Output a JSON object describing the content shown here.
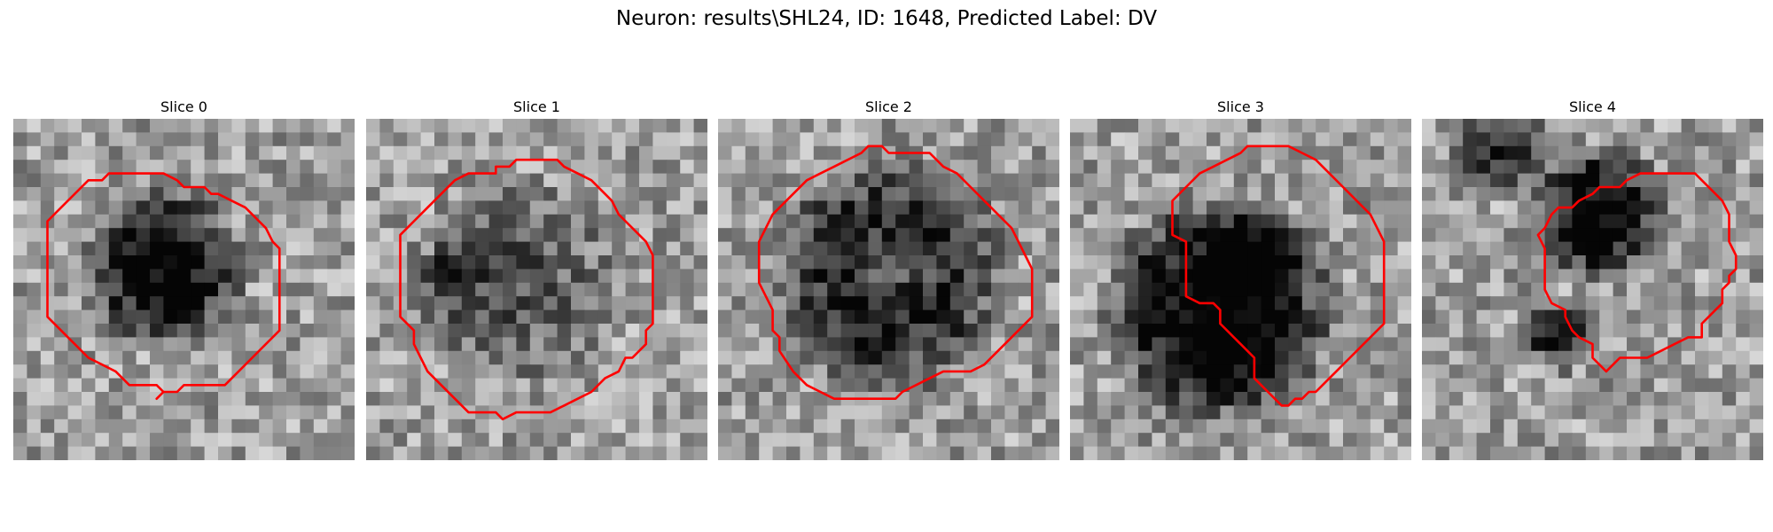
{
  "figure": {
    "title": "Neuron: results\\SHL24, ID: 1648, Predicted Label: DV"
  },
  "contour_color": "#ff0000",
  "grid_size": 25,
  "panels": [
    {
      "title": "Slice 0",
      "contour": [
        [
          4.5,
          5.5
        ],
        [
          5.5,
          4.5
        ],
        [
          6.5,
          4.5
        ],
        [
          7,
          4
        ],
        [
          9,
          4
        ],
        [
          11,
          4
        ],
        [
          12,
          4.5
        ],
        [
          12.5,
          5
        ],
        [
          14,
          5
        ],
        [
          14.5,
          5.5
        ],
        [
          15,
          5.5
        ],
        [
          16,
          6
        ],
        [
          17,
          6.5
        ],
        [
          18,
          7.5
        ],
        [
          18.5,
          8
        ],
        [
          19,
          9
        ],
        [
          19.5,
          9.5
        ],
        [
          19.5,
          10.5
        ],
        [
          19.5,
          12
        ],
        [
          19.5,
          15.5
        ],
        [
          18.5,
          16.5
        ],
        [
          17.5,
          17.5
        ],
        [
          16.5,
          18.5
        ],
        [
          15.5,
          19.5
        ],
        [
          13.5,
          19.5
        ],
        [
          12.5,
          19.5
        ],
        [
          12,
          20
        ],
        [
          11.5,
          20
        ],
        [
          11,
          20
        ],
        [
          10.5,
          20.5
        ],
        [
          11,
          20
        ],
        [
          10.5,
          19.5
        ],
        [
          9.5,
          19.5
        ],
        [
          8.5,
          19.5
        ],
        [
          7.5,
          18.5
        ],
        [
          6.5,
          18
        ],
        [
          5.5,
          17.5
        ],
        [
          4.5,
          16.5
        ],
        [
          3.5,
          15.5
        ],
        [
          2.5,
          14.5
        ],
        [
          2.5,
          11.5
        ],
        [
          2.5,
          10.5
        ],
        [
          2.5,
          9.5
        ],
        [
          2.5,
          8.5
        ],
        [
          2.5,
          7.5
        ],
        [
          3.5,
          6.5
        ]
      ]
    },
    {
      "title": "Slice 1",
      "contour": [
        [
          2.5,
          8.5
        ],
        [
          3.5,
          7.5
        ],
        [
          4.5,
          6.5
        ],
        [
          5.5,
          5.5
        ],
        [
          6.5,
          4.5
        ],
        [
          7.5,
          4
        ],
        [
          9.5,
          4
        ],
        [
          9.5,
          3.5
        ],
        [
          10.5,
          3.5
        ],
        [
          11,
          3
        ],
        [
          13,
          3
        ],
        [
          14,
          3
        ],
        [
          14.5,
          3.5
        ],
        [
          15.5,
          4
        ],
        [
          16.5,
          4.5
        ],
        [
          17.5,
          5.5
        ],
        [
          18,
          6
        ],
        [
          18.5,
          7
        ],
        [
          19,
          7.5
        ],
        [
          19.5,
          8
        ],
        [
          20.5,
          9
        ],
        [
          21,
          10
        ],
        [
          21,
          11
        ],
        [
          21,
          12
        ],
        [
          21,
          13
        ],
        [
          21,
          14
        ],
        [
          21,
          15
        ],
        [
          20.5,
          15.5
        ],
        [
          20.5,
          16.5
        ],
        [
          19.5,
          17.5
        ],
        [
          19,
          17.5
        ],
        [
          18.5,
          18.5
        ],
        [
          17.5,
          19
        ],
        [
          16.5,
          20
        ],
        [
          15.5,
          20.5
        ],
        [
          14.5,
          21
        ],
        [
          13.5,
          21.5
        ],
        [
          12.5,
          21.5
        ],
        [
          11.5,
          21.5
        ],
        [
          11,
          21.5
        ],
        [
          10,
          22
        ],
        [
          9.5,
          21.5
        ],
        [
          8.5,
          21.5
        ],
        [
          7.5,
          21.5
        ],
        [
          6.5,
          20.5
        ],
        [
          5.5,
          19.5
        ],
        [
          4.5,
          18.5
        ],
        [
          4,
          17.5
        ],
        [
          3.5,
          16.5
        ],
        [
          3.5,
          15.5
        ],
        [
          2.5,
          14.5
        ],
        [
          2.5,
          13.5
        ],
        [
          2.5,
          12.5
        ],
        [
          2.5,
          11.5
        ],
        [
          2.5,
          9.5
        ]
      ]
    },
    {
      "title": "Slice 2",
      "contour": [
        [
          4,
          7
        ],
        [
          4.5,
          6.5
        ],
        [
          5.5,
          5.5
        ],
        [
          6.5,
          4.5
        ],
        [
          7.5,
          4
        ],
        [
          8.5,
          3.5
        ],
        [
          9.5,
          3
        ],
        [
          10.5,
          2.5
        ],
        [
          11,
          2
        ],
        [
          12,
          2
        ],
        [
          12.5,
          2.5
        ],
        [
          13.5,
          2.5
        ],
        [
          15.5,
          2.5
        ],
        [
          16.5,
          3.5
        ],
        [
          17.5,
          4
        ],
        [
          18.5,
          5
        ],
        [
          19.5,
          6
        ],
        [
          20,
          6.5
        ],
        [
          20.5,
          7
        ],
        [
          21.5,
          8
        ],
        [
          22,
          9
        ],
        [
          22.5,
          10
        ],
        [
          23,
          11
        ],
        [
          23,
          12
        ],
        [
          23,
          13
        ],
        [
          23,
          14.5
        ],
        [
          22,
          15.5
        ],
        [
          21.5,
          16
        ],
        [
          20.5,
          17
        ],
        [
          19.5,
          18
        ],
        [
          18.5,
          18.5
        ],
        [
          16.5,
          18.5
        ],
        [
          15.5,
          19
        ],
        [
          14.5,
          19.5
        ],
        [
          13.5,
          20
        ],
        [
          13,
          20.5
        ],
        [
          12,
          20.5
        ],
        [
          11.5,
          20.5
        ],
        [
          10.5,
          20.5
        ],
        [
          9.5,
          20.5
        ],
        [
          8.5,
          20.5
        ],
        [
          7.5,
          20
        ],
        [
          6.5,
          19.5
        ],
        [
          5.5,
          18.5
        ],
        [
          4.5,
          17
        ],
        [
          4.5,
          16
        ],
        [
          4,
          15.5
        ],
        [
          4,
          14
        ],
        [
          3.5,
          13
        ],
        [
          3,
          12
        ],
        [
          3,
          10
        ],
        [
          3,
          9
        ],
        [
          3.5,
          8
        ]
      ]
    },
    {
      "title": "Slice 3",
      "contour": [
        [
          7.5,
          6
        ],
        [
          8.5,
          5
        ],
        [
          9.5,
          4
        ],
        [
          10.5,
          3.5
        ],
        [
          11.5,
          3
        ],
        [
          12.5,
          2.5
        ],
        [
          13,
          2
        ],
        [
          16,
          2
        ],
        [
          17,
          2.5
        ],
        [
          18,
          3
        ],
        [
          19,
          4
        ],
        [
          20,
          5
        ],
        [
          21,
          6
        ],
        [
          22,
          7
        ],
        [
          22.5,
          8
        ],
        [
          23,
          9
        ],
        [
          23,
          10
        ],
        [
          23,
          11
        ],
        [
          23,
          12
        ],
        [
          23,
          13
        ],
        [
          23,
          14
        ],
        [
          23,
          15
        ],
        [
          22.5,
          15.5
        ],
        [
          22,
          16
        ],
        [
          21.5,
          16.5
        ],
        [
          21,
          17
        ],
        [
          20.5,
          17.5
        ],
        [
          20,
          18
        ],
        [
          19.5,
          18.5
        ],
        [
          19,
          19
        ],
        [
          18.5,
          19.5
        ],
        [
          18,
          20
        ],
        [
          17.5,
          20
        ],
        [
          17,
          20.5
        ],
        [
          16.5,
          20.5
        ],
        [
          16,
          21
        ],
        [
          15.5,
          21
        ],
        [
          15,
          20.5
        ],
        [
          14.5,
          20
        ],
        [
          14,
          19.5
        ],
        [
          13.5,
          19
        ],
        [
          13.5,
          17.5
        ],
        [
          13,
          17
        ],
        [
          12.5,
          16.5
        ],
        [
          12,
          16
        ],
        [
          11.5,
          15.5
        ],
        [
          11,
          15
        ],
        [
          11,
          14
        ],
        [
          10.5,
          13.5
        ],
        [
          9.5,
          13.5
        ],
        [
          8.5,
          13
        ],
        [
          8.5,
          11
        ],
        [
          8.5,
          9
        ],
        [
          7.5,
          8.5
        ],
        [
          7.5,
          7
        ]
      ]
    },
    {
      "title": "Slice 4",
      "contour": [
        [
          8.5,
          8.5
        ],
        [
          9,
          8
        ],
        [
          9.5,
          7
        ],
        [
          10,
          6.5
        ],
        [
          11,
          6.5
        ],
        [
          11.5,
          6
        ],
        [
          12.5,
          5.5
        ],
        [
          13,
          5
        ],
        [
          14.5,
          5
        ],
        [
          15,
          4.5
        ],
        [
          16,
          4
        ],
        [
          17.5,
          4
        ],
        [
          19,
          4
        ],
        [
          20,
          4
        ],
        [
          20.5,
          4.5
        ],
        [
          21.5,
          5.5
        ],
        [
          22,
          6
        ],
        [
          22.5,
          7
        ],
        [
          22.5,
          8
        ],
        [
          22.5,
          9
        ],
        [
          23,
          10
        ],
        [
          23,
          11
        ],
        [
          22.5,
          11.5
        ],
        [
          22.5,
          12
        ],
        [
          22,
          12.5
        ],
        [
          22,
          13.5
        ],
        [
          21.5,
          14
        ],
        [
          21,
          14.5
        ],
        [
          20.5,
          15
        ],
        [
          20.5,
          16
        ],
        [
          19.5,
          16
        ],
        [
          18.5,
          16.5
        ],
        [
          17.5,
          17
        ],
        [
          16.5,
          17.5
        ],
        [
          14.5,
          17.5
        ],
        [
          14,
          18
        ],
        [
          13.5,
          18.5
        ],
        [
          13,
          18
        ],
        [
          12.5,
          17.5
        ],
        [
          12.5,
          16.5
        ],
        [
          11.5,
          16
        ],
        [
          11,
          15.5
        ],
        [
          10.5,
          14.5
        ],
        [
          10.5,
          14
        ],
        [
          9.5,
          13.5
        ],
        [
          9,
          12.5
        ],
        [
          9,
          11
        ],
        [
          9,
          9.5
        ]
      ]
    }
  ]
}
